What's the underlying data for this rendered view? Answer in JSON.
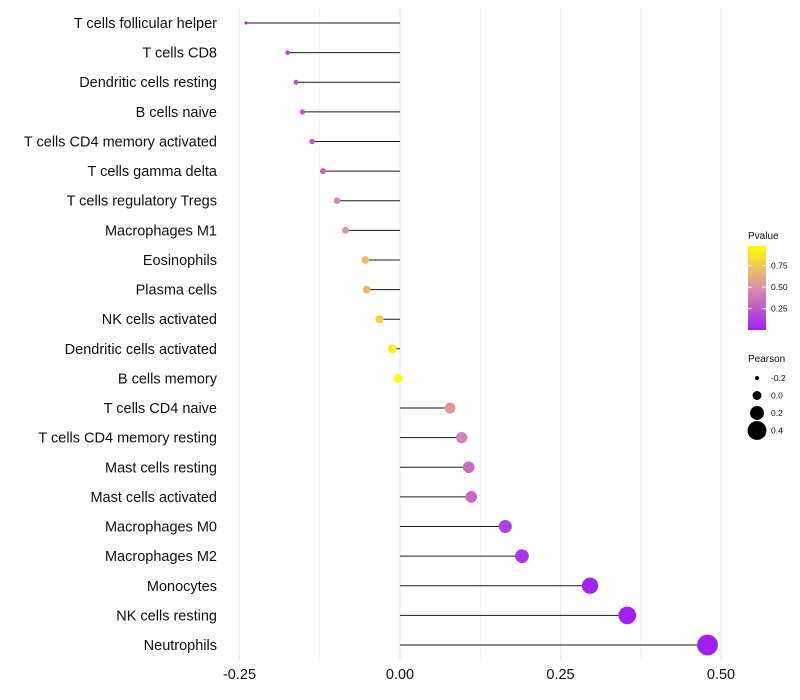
{
  "chart_data": {
    "type": "scatter",
    "subtype": "lollipop",
    "title": "",
    "xlabel": "",
    "ylabel": "",
    "xlim": [
      -0.25,
      0.5
    ],
    "xticks": [
      -0.25,
      0.0,
      0.25,
      0.5
    ],
    "xtick_labels": [
      "-0.25",
      "0.00",
      "0.25",
      "0.50"
    ],
    "grid": true,
    "categories": [
      "T cells follicular helper",
      "T cells CD8",
      "Dendritic cells resting",
      "B cells naive",
      "T cells CD4 memory activated",
      "T cells gamma delta",
      "T cells regulatory  Tregs",
      "Macrophages M1",
      "Eosinophils",
      "Plasma cells",
      "NK cells activated",
      "Dendritic cells activated",
      "B cells memory",
      "T cells CD4 naive",
      "T cells CD4 memory resting",
      "Mast cells resting",
      "Mast cells activated",
      "Macrophages M0",
      "Macrophages M2",
      "Monocytes",
      "NK cells resting",
      "Neutrophils"
    ],
    "pearson": [
      -0.24,
      -0.175,
      -0.162,
      -0.152,
      -0.137,
      -0.12,
      -0.098,
      -0.085,
      -0.054,
      -0.052,
      -0.032,
      -0.012,
      -0.003,
      0.078,
      0.096,
      0.107,
      0.111,
      0.164,
      0.19,
      0.296,
      0.354,
      0.479
    ],
    "pvalue": [
      0.02,
      0.2,
      0.22,
      0.24,
      0.27,
      0.31,
      0.45,
      0.55,
      0.7,
      0.68,
      0.8,
      0.93,
      0.98,
      0.55,
      0.45,
      0.35,
      0.33,
      0.15,
      0.1,
      0.02,
      0.01,
      0.0
    ],
    "legend": {
      "position": "right",
      "color_title": "Pvalue",
      "color_ticks": [
        0.25,
        0.5,
        0.75
      ],
      "color_tick_labels": [
        "0.25",
        "0.50",
        "0.75"
      ],
      "color_low": "#a020f0",
      "color_high": "#ffff00",
      "size_title": "Pearson",
      "size_values": [
        -0.2,
        0.0,
        0.2,
        0.4
      ],
      "size_labels": [
        "-0.2",
        "0.0",
        "0.2",
        "0.4"
      ]
    }
  }
}
